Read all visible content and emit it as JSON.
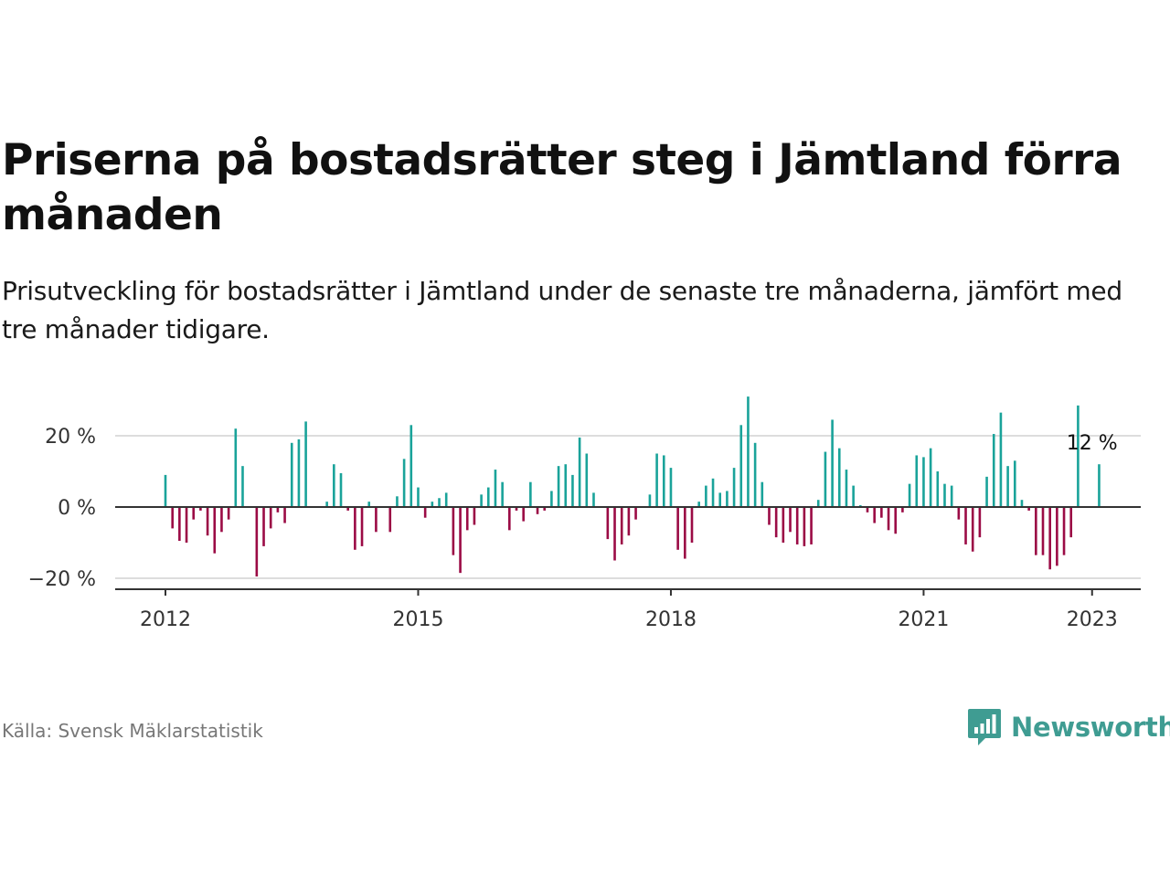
{
  "header": {
    "title": "Priserna på bostadsrätter steg i Jämtland förra månaden",
    "subtitle": "Prisutveckling för bostadsrätter i Jämtland under de senaste tre månaderna, jämfört med tre månader tidigare."
  },
  "footer": {
    "source": "Källa: Svensk Mäklarstatistik",
    "brand": "Newsworthy",
    "brand_icon": "bar-chart-speech-bubble-icon"
  },
  "colors": {
    "positive": "#1aa39a",
    "negative": "#9b0b45",
    "zero_line": "#333333",
    "grid": "#dddddd",
    "brand": "#3f9c92"
  },
  "chart_data": {
    "type": "bar",
    "title": "",
    "xlabel": "",
    "ylabel": "",
    "ylim": [
      -22,
      31
    ],
    "y_ticks": [
      {
        "value": 20,
        "label": "20 %"
      },
      {
        "value": 0,
        "label": "0 %"
      },
      {
        "value": -20,
        "label": "−20 %"
      }
    ],
    "x_ticks": [
      {
        "value": "2012-01",
        "label": "2012"
      },
      {
        "value": "2015-01",
        "label": "2015"
      },
      {
        "value": "2018-01",
        "label": "2018"
      },
      {
        "value": "2021-01",
        "label": "2021"
      },
      {
        "value": "2023-01",
        "label": "2023"
      }
    ],
    "grid": true,
    "annotation": {
      "x": "2023-01",
      "label": "12 %"
    },
    "series": [
      {
        "start": "2012-01",
        "interval": "month",
        "values": [
          9,
          -6,
          -9.5,
          -10,
          -3.5,
          -1,
          -8,
          -13,
          -7,
          -3.5,
          22,
          11.5,
          0,
          -19.5,
          -11,
          -6,
          -1.5,
          -4.5,
          18,
          19,
          24,
          0,
          0,
          1.5,
          12,
          9.5,
          -1,
          -12,
          -11,
          1.5,
          -7,
          0,
          -7,
          3,
          13.5,
          23,
          5.5,
          -3,
          1.5,
          2.5,
          4,
          -13.5,
          -18.5,
          -6.5,
          -5,
          3.5,
          5.5,
          10.5,
          7,
          -6.5,
          -1,
          -4,
          7,
          -2,
          -1,
          4.5,
          11.5,
          12,
          9,
          19.5,
          15,
          4,
          0,
          -9,
          -15,
          -10.5,
          -8,
          -3.5,
          0,
          3.5,
          15,
          14.5,
          11,
          -12,
          -14.5,
          -10,
          1.5,
          6,
          8,
          4,
          4.5,
          11,
          23,
          31,
          18,
          7,
          -5,
          -8.5,
          -10,
          -7,
          -10.5,
          -11,
          -10.5,
          2,
          15.5,
          24.5,
          16.5,
          10.5,
          6,
          0.5,
          -1.5,
          -4.5,
          -3,
          -6.5,
          -7.5,
          -1.5,
          6.5,
          14.5,
          14,
          16.5,
          10,
          6.5,
          6,
          -3.5,
          -10.5,
          -12.5,
          -8.5,
          8.5,
          20.5,
          26.5,
          11.5,
          13,
          2,
          -1,
          -13.5,
          -13.5,
          -17.5,
          -16.5,
          -13.5,
          -8.5,
          28.5,
          0,
          0,
          12
        ]
      }
    ]
  }
}
